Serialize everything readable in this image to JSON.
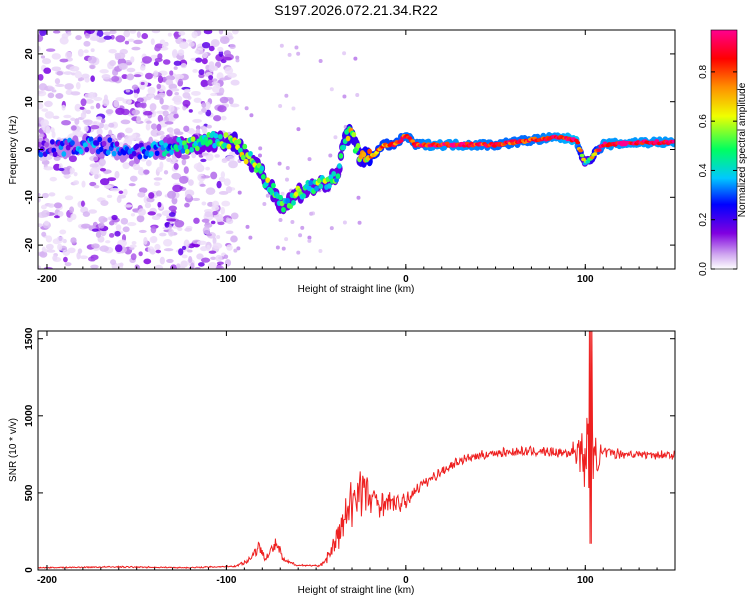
{
  "chart_data": [
    {
      "type": "heatmap",
      "title": "S197.2026.072.21.34.R22",
      "xlabel": "Height of straight line (km)",
      "ylabel": "Frequency (Hz)",
      "xlim": [
        -205,
        150
      ],
      "ylim": [
        -25,
        25
      ],
      "xticks": [
        -200,
        -100,
        0,
        100
      ],
      "xtick_labels": [
        "-200",
        "-100",
        "0",
        "100"
      ],
      "yticks": [
        -20,
        -10,
        0,
        10,
        20
      ],
      "ytick_labels": [
        "-20",
        "-10",
        "0",
        "10",
        "20"
      ],
      "colorbar": {
        "label": "Normalized spectral amplitude",
        "range": [
          0.0,
          0.97
        ],
        "ticks": [
          0.0,
          0.2,
          0.4,
          0.6,
          0.8
        ],
        "tick_labels": [
          "0.0",
          "0.2",
          "0.4",
          "0.6",
          "0.8"
        ],
        "colors": [
          "#ffffff",
          "#d0a8f0",
          "#8000e0",
          "#0000ff",
          "#00c8ff",
          "#00ff60",
          "#f0ff00",
          "#ff9000",
          "#ff0000",
          "#ff0090"
        ]
      },
      "ridge": {
        "x": [
          -205,
          -190,
          -175,
          -165,
          -155,
          -140,
          -120,
          -105,
          -95,
          -85,
          -75,
          -68,
          -60,
          -52,
          -45,
          -38,
          -34,
          -30,
          -26,
          -22,
          -18,
          -12,
          -6,
          0,
          5,
          15,
          30,
          50,
          70,
          85,
          95,
          100,
          110,
          130,
          150
        ],
        "freq": [
          0,
          0.5,
          1,
          0.5,
          -1,
          0,
          1,
          2,
          1.5,
          -3,
          -8,
          -12,
          -9,
          -8,
          -7,
          -6,
          3,
          3,
          -1,
          -2,
          -1,
          1,
          1,
          3,
          1,
          1,
          1,
          1,
          2,
          2.5,
          2,
          -3,
          1,
          1.5,
          1.5
        ],
        "amp": [
          0.25,
          0.3,
          0.35,
          0.3,
          0.3,
          0.35,
          0.5,
          0.5,
          0.6,
          0.55,
          0.55,
          0.5,
          0.55,
          0.5,
          0.55,
          0.5,
          0.6,
          0.65,
          0.6,
          0.7,
          0.75,
          0.8,
          0.8,
          0.85,
          0.85,
          0.9,
          0.9,
          0.85,
          0.85,
          0.9,
          0.95,
          0.5,
          0.9,
          0.9,
          0.9
        ]
      }
    },
    {
      "type": "line",
      "xlabel": "Height of straight line (km)",
      "ylabel": "SNR (10 * v/v)",
      "xlim": [
        -205,
        150
      ],
      "ylim": [
        0,
        1550
      ],
      "xticks": [
        -200,
        -100,
        0,
        100
      ],
      "xtick_labels": [
        "-200",
        "-100",
        "0",
        "100"
      ],
      "yticks": [
        0,
        500,
        1000,
        1500
      ],
      "ytick_labels": [
        "0",
        "500",
        "1000",
        "1500"
      ],
      "series": [
        {
          "name": "SNR",
          "color": "#ee2020",
          "x": [
            -205,
            -160,
            -120,
            -95,
            -88,
            -82,
            -78,
            -72,
            -68,
            -60,
            -55,
            -48,
            -44,
            -40,
            -35,
            -30,
            -26,
            -23,
            -20,
            -17,
            -12,
            -6,
            0,
            5,
            10,
            20,
            30,
            40,
            50,
            70,
            90,
            95,
            98,
            100,
            102,
            103,
            105,
            110,
            130,
            150
          ],
          "y": [
            15,
            20,
            15,
            25,
            60,
            150,
            80,
            170,
            60,
            30,
            30,
            25,
            80,
            160,
            300,
            420,
            560,
            500,
            460,
            440,
            440,
            430,
            440,
            520,
            560,
            640,
            710,
            740,
            760,
            770,
            760,
            780,
            760,
            700,
            760,
            650,
            720,
            760,
            750,
            745
          ],
          "spread": [
            6,
            8,
            6,
            10,
            30,
            70,
            40,
            80,
            30,
            10,
            10,
            10,
            60,
            120,
            220,
            300,
            320,
            300,
            250,
            200,
            150,
            110,
            90,
            70,
            60,
            50,
            50,
            50,
            50,
            50,
            60,
            150,
            250,
            380,
            600,
            700,
            250,
            60,
            50,
            50
          ]
        }
      ]
    }
  ]
}
